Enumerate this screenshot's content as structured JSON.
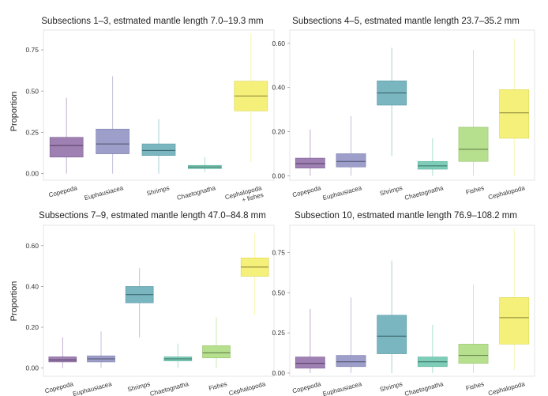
{
  "chart_data": [
    {
      "type": "box",
      "title": "Subsections 1–3, estmated mantle length 7.0–19.3 mm",
      "ylabel": "Proportion",
      "ylim": [
        -0.04,
        0.87
      ],
      "yticks": [
        "0.00",
        "0.25",
        "0.50",
        "0.75"
      ],
      "ytick_values": [
        0,
        0.25,
        0.5,
        0.75
      ],
      "categories": [
        "Copepoda",
        "Euphausiacea",
        "Shrimps",
        "Chaetognatha",
        "Cephalopoda\n+ fishes"
      ],
      "boxes": [
        {
          "whislo": 0.0,
          "q1": 0.1,
          "med": 0.17,
          "q3": 0.22,
          "whishi": 0.46,
          "color": "#8e6aa6"
        },
        {
          "whislo": 0.0,
          "q1": 0.12,
          "med": 0.18,
          "q3": 0.27,
          "whishi": 0.59,
          "color": "#8c8dc0"
        },
        {
          "whislo": 0.0,
          "q1": 0.11,
          "med": 0.14,
          "q3": 0.18,
          "whishi": 0.33,
          "color": "#62a9b5"
        },
        {
          "whislo": 0.01,
          "q1": 0.03,
          "med": 0.04,
          "q3": 0.05,
          "whishi": 0.1,
          "color": "#66c4ac"
        },
        {
          "whislo": 0.07,
          "q1": 0.38,
          "med": 0.47,
          "q3": 0.56,
          "whishi": 0.85,
          "color": "#f3ed62"
        }
      ]
    },
    {
      "type": "box",
      "title": "Subsections 4–5, estmated mantle length 23.7–35.2 mm",
      "ylabel": "",
      "ylim": [
        -0.02,
        0.66
      ],
      "yticks": [
        "0.00",
        "0.20",
        "0.40",
        "0.60"
      ],
      "ytick_values": [
        0,
        0.2,
        0.4,
        0.6
      ],
      "categories": [
        "Copepoda",
        "Euphausiacea",
        "Shrimps",
        "Chaetognatha",
        "Fishes",
        "Cephalopoda"
      ],
      "boxes": [
        {
          "whislo": 0.0,
          "q1": 0.035,
          "med": 0.055,
          "q3": 0.08,
          "whishi": 0.21,
          "color": "#8e6aa6"
        },
        {
          "whislo": 0.0,
          "q1": 0.04,
          "med": 0.065,
          "q3": 0.1,
          "whishi": 0.27,
          "color": "#8c8dc0"
        },
        {
          "whislo": 0.09,
          "q1": 0.32,
          "med": 0.375,
          "q3": 0.43,
          "whishi": 0.58,
          "color": "#62a9b5"
        },
        {
          "whislo": 0.0,
          "q1": 0.03,
          "med": 0.045,
          "q3": 0.065,
          "whishi": 0.17,
          "color": "#66c4ac"
        },
        {
          "whislo": 0.0,
          "q1": 0.065,
          "med": 0.12,
          "q3": 0.22,
          "whishi": 0.57,
          "color": "#a9d97a"
        },
        {
          "whislo": 0.0,
          "q1": 0.17,
          "med": 0.285,
          "q3": 0.39,
          "whishi": 0.62,
          "color": "#f3ed62"
        }
      ]
    },
    {
      "type": "box",
      "title": "Subsections 7–9, estmated mantle length 47.0–84.8 mm",
      "ylabel": "Proportion",
      "ylim": [
        -0.04,
        0.7
      ],
      "yticks": [
        "0.00",
        "0.20",
        "0.40",
        "0.60"
      ],
      "ytick_values": [
        0,
        0.2,
        0.4,
        0.6
      ],
      "categories": [
        "Copepoda",
        "Euphausiacea",
        "Shrimps",
        "Chaetognatha",
        "Fishes",
        "Cephalopoda"
      ],
      "boxes": [
        {
          "whislo": 0.0,
          "q1": 0.03,
          "med": 0.04,
          "q3": 0.055,
          "whishi": 0.15,
          "color": "#8e6aa6"
        },
        {
          "whislo": 0.0,
          "q1": 0.03,
          "med": 0.045,
          "q3": 0.06,
          "whishi": 0.18,
          "color": "#8c8dc0"
        },
        {
          "whislo": 0.15,
          "q1": 0.32,
          "med": 0.36,
          "q3": 0.4,
          "whishi": 0.49,
          "color": "#62a9b5"
        },
        {
          "whislo": 0.0,
          "q1": 0.035,
          "med": 0.045,
          "q3": 0.055,
          "whishi": 0.12,
          "color": "#66c4ac"
        },
        {
          "whislo": 0.0,
          "q1": 0.05,
          "med": 0.075,
          "q3": 0.11,
          "whishi": 0.25,
          "color": "#a9d97a"
        },
        {
          "whislo": 0.26,
          "q1": 0.45,
          "med": 0.495,
          "q3": 0.54,
          "whishi": 0.66,
          "color": "#f3ed62"
        }
      ]
    },
    {
      "type": "box",
      "title": "Subsection 10, estmated mantle length 76.9–108.2 mm",
      "ylabel": "",
      "ylim": [
        -0.02,
        0.92
      ],
      "yticks": [
        "0.00",
        "0.25",
        "0.50",
        "0.75"
      ],
      "ytick_values": [
        0,
        0.25,
        0.5,
        0.75
      ],
      "categories": [
        "Copepoda",
        "Euphausiacea",
        "Shrimps",
        "Chaetognatha",
        "Fishes",
        "Cephalopoda"
      ],
      "boxes": [
        {
          "whislo": 0.0,
          "q1": 0.03,
          "med": 0.06,
          "q3": 0.1,
          "whishi": 0.4,
          "color": "#8e6aa6"
        },
        {
          "whislo": 0.0,
          "q1": 0.04,
          "med": 0.07,
          "q3": 0.11,
          "whishi": 0.47,
          "color": "#8c8dc0"
        },
        {
          "whislo": 0.0,
          "q1": 0.12,
          "med": 0.23,
          "q3": 0.36,
          "whishi": 0.7,
          "color": "#62a9b5"
        },
        {
          "whislo": 0.0,
          "q1": 0.04,
          "med": 0.07,
          "q3": 0.1,
          "whishi": 0.3,
          "color": "#66c4ac"
        },
        {
          "whislo": 0.0,
          "q1": 0.06,
          "med": 0.11,
          "q3": 0.18,
          "whishi": 0.55,
          "color": "#a9d97a"
        },
        {
          "whislo": 0.02,
          "q1": 0.18,
          "med": 0.345,
          "q3": 0.47,
          "whishi": 0.9,
          "color": "#f3ed62"
        }
      ]
    }
  ]
}
